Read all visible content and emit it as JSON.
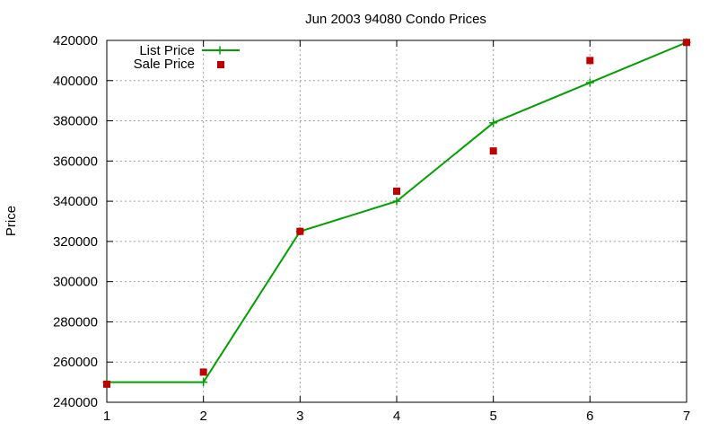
{
  "chart_data": {
    "type": "line",
    "title": "Jun 2003 94080 Condo Prices",
    "xlabel": "",
    "ylabel": "Price",
    "xlim": [
      1,
      7
    ],
    "ylim": [
      240000,
      420000
    ],
    "xticks": [
      1,
      2,
      3,
      4,
      5,
      6,
      7
    ],
    "yticks": [
      240000,
      260000,
      280000,
      300000,
      320000,
      340000,
      360000,
      380000,
      400000,
      420000
    ],
    "grid": true,
    "legend_position": "top-left",
    "series": [
      {
        "name": "List Price",
        "style": "line-with-plus-markers",
        "color": "#00a000",
        "points": [
          [
            1,
            250000
          ],
          [
            2,
            250000
          ],
          [
            3,
            325000
          ],
          [
            4,
            340000
          ],
          [
            5,
            379000
          ],
          [
            6,
            399000
          ],
          [
            7,
            419000
          ]
        ]
      },
      {
        "name": "Sale Price",
        "style": "square-markers",
        "color": "#c00000",
        "points": [
          [
            1,
            249000
          ],
          [
            2,
            255000
          ],
          [
            3,
            325000
          ],
          [
            4,
            345000
          ],
          [
            5,
            365000
          ],
          [
            6,
            410000
          ],
          [
            7,
            419000
          ]
        ]
      }
    ]
  }
}
